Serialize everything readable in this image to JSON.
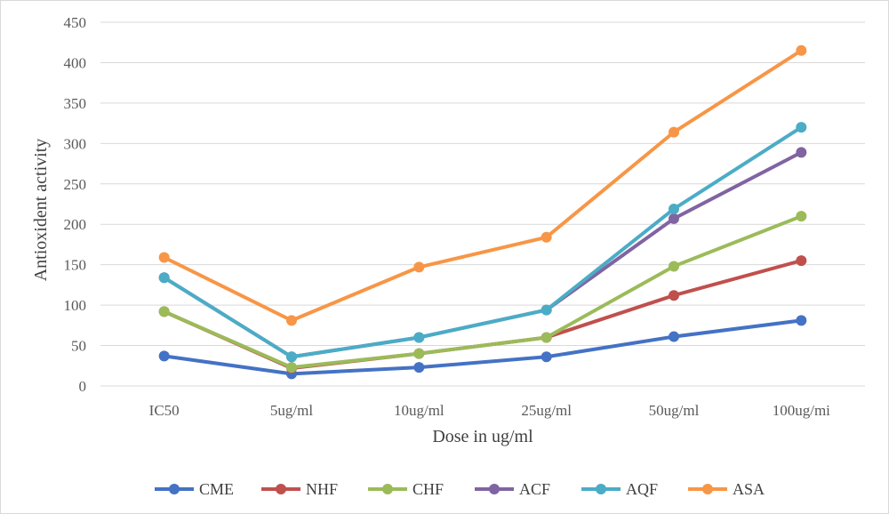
{
  "chart_data": {
    "type": "line",
    "title": "",
    "xlabel": "Dose in ug/ml",
    "ylabel": "Antioxident activity",
    "categories": [
      "IC50",
      "5ug/ml",
      "10ug/ml",
      "25ug/ml",
      "50ug/ml",
      "100ug/mi"
    ],
    "ylim": [
      0,
      450
    ],
    "yticks": [
      0,
      50,
      100,
      150,
      200,
      250,
      300,
      350,
      400,
      450
    ],
    "grid": true,
    "legend_position": "bottom",
    "series": [
      {
        "name": "CME",
        "color": "#4472c4",
        "values": [
          37,
          15,
          23,
          36,
          61,
          81
        ]
      },
      {
        "name": "NHF",
        "color": "#c0504d",
        "values": [
          92,
          22,
          40,
          60,
          112,
          155
        ]
      },
      {
        "name": "CHF",
        "color": "#9bbb59",
        "values": [
          92,
          23,
          40,
          60,
          148,
          210
        ]
      },
      {
        "name": "ACF",
        "color": "#8064a2",
        "values": [
          134,
          36,
          60,
          94,
          207,
          289
        ]
      },
      {
        "name": "AQF",
        "color": "#4bacc6",
        "values": [
          134,
          36,
          60,
          94,
          219,
          320
        ]
      },
      {
        "name": "ASA",
        "color": "#f79646",
        "values": [
          159,
          81,
          147,
          184,
          314,
          415
        ]
      }
    ]
  }
}
